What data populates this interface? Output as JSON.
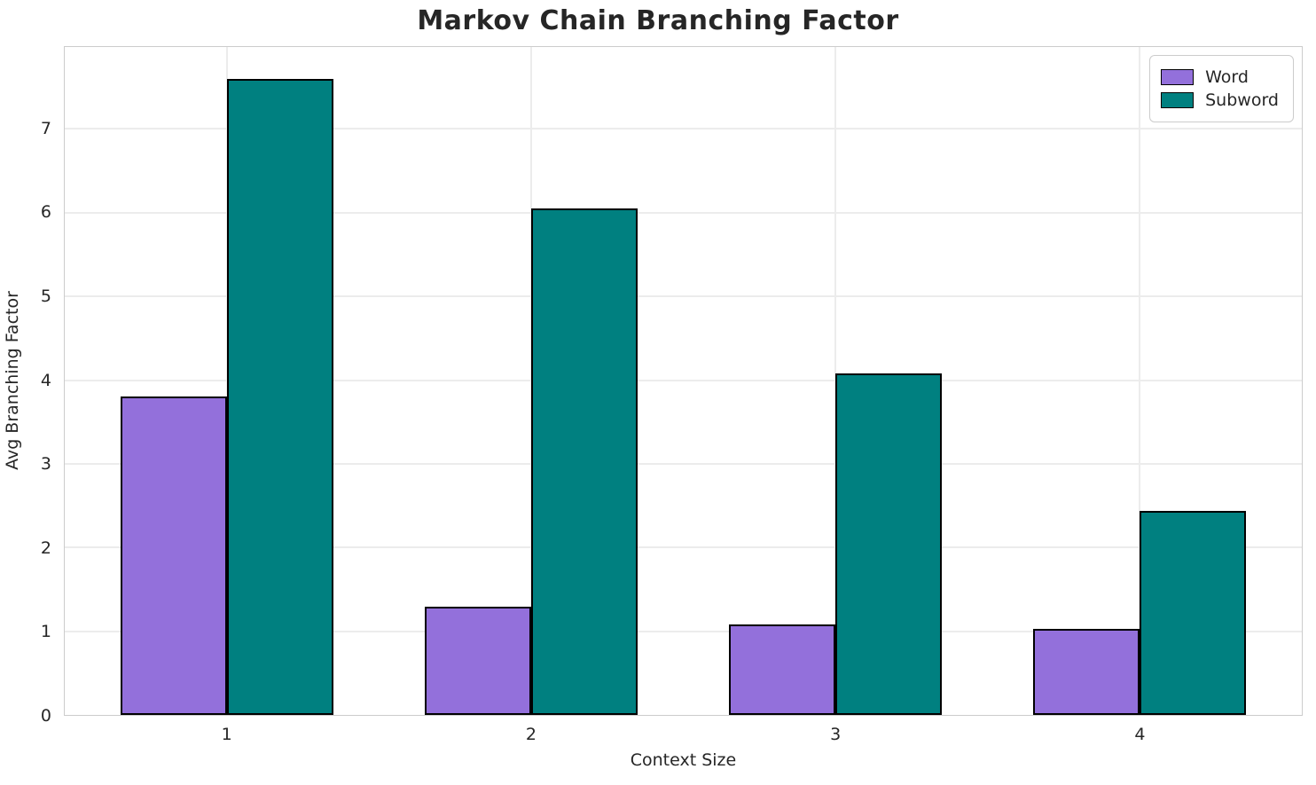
{
  "chart_data": {
    "type": "bar",
    "title": "Markov Chain Branching Factor",
    "xlabel": "Context Size",
    "ylabel": "Avg Branching Factor",
    "categories": [
      "1",
      "2",
      "3",
      "4"
    ],
    "series": [
      {
        "name": "Word",
        "color": "#9370DB",
        "values": [
          3.8,
          1.29,
          1.08,
          1.03
        ]
      },
      {
        "name": "Subword",
        "color": "#008080",
        "values": [
          7.6,
          6.05,
          4.08,
          2.44
        ]
      }
    ],
    "bar_width": 0.35,
    "bar_edge_color": "#000000",
    "ylim": [
      0,
      7.98
    ],
    "xlim": [
      -0.535,
      3.535
    ],
    "yticks": [
      0,
      1,
      2,
      3,
      4,
      5,
      6,
      7
    ],
    "grid": true,
    "grid_color": "#ececec",
    "spine_color": "#cccccc",
    "text_color": "#262626",
    "legend_position": "upper right"
  }
}
